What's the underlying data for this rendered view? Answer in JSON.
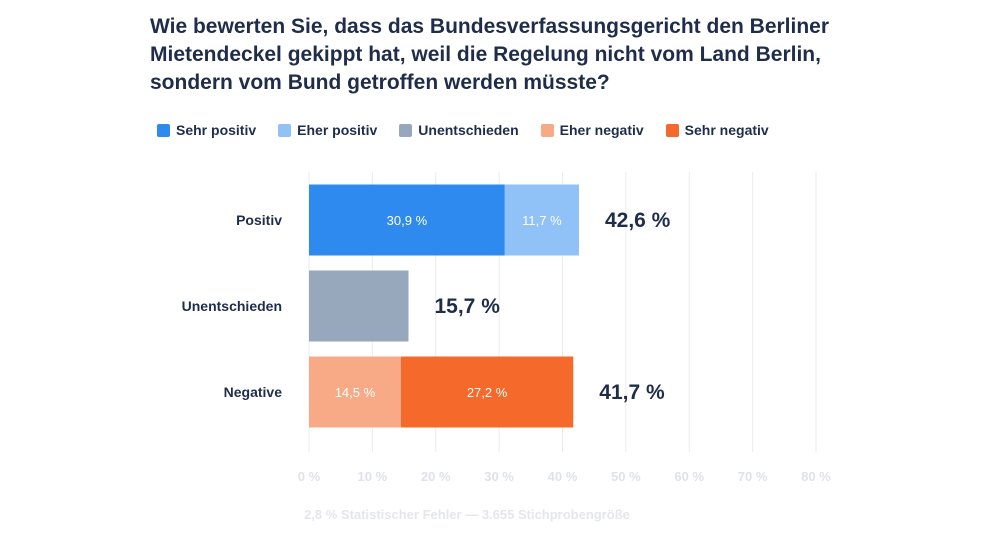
{
  "title": "Wie bewerten Sie, dass das Bundesverfassungsgericht den Berliner Mietendeckel gekippt hat, weil die Regelung nicht vom Land Berlin, sondern vom Bund getroffen werden müsste?",
  "legend": [
    {
      "label": "Sehr positiv",
      "color": "#2f8af0"
    },
    {
      "label": "Eher positiv",
      "color": "#90c2f7"
    },
    {
      "label": "Unentschieden",
      "color": "#97a7bc"
    },
    {
      "label": "Eher negativ",
      "color": "#f8aa86"
    },
    {
      "label": "Sehr negativ",
      "color": "#f5692a"
    }
  ],
  "footer": "2,8 % Statistischer Fehler — 3.655 Stichprobengröße",
  "chart_data": {
    "type": "bar",
    "orientation": "horizontal",
    "stacked": true,
    "categories": [
      "Positiv",
      "Unentschieden",
      "Negative"
    ],
    "rows": [
      {
        "category": "Positiv",
        "total_label": "42,6 %",
        "segments": [
          {
            "series": "Sehr positiv",
            "value": 30.9,
            "label": "30,9 %",
            "color": "#2f8af0"
          },
          {
            "series": "Eher positiv",
            "value": 11.7,
            "label": "11,7 %",
            "color": "#90c2f7"
          }
        ]
      },
      {
        "category": "Unentschieden",
        "total_label": "15,7 %",
        "segments": [
          {
            "series": "Unentschieden",
            "value": 15.7,
            "label": "",
            "color": "#97a7bc"
          }
        ]
      },
      {
        "category": "Negative",
        "total_label": "41,7 %",
        "segments": [
          {
            "series": "Eher negativ",
            "value": 14.5,
            "label": "14,5 %",
            "color": "#f8aa86"
          },
          {
            "series": "Sehr negativ",
            "value": 27.2,
            "label": "27,2 %",
            "color": "#f5692a"
          }
        ]
      }
    ],
    "xlim": [
      0,
      80
    ],
    "xticks": [
      0,
      10,
      20,
      30,
      40,
      50,
      60,
      70,
      80
    ],
    "xtick_labels": [
      "0 %",
      "10 %",
      "20 %",
      "30 %",
      "40 %",
      "50 %",
      "60 %",
      "70 %",
      "80 %"
    ],
    "grid": true,
    "legend_position": "top-left"
  }
}
